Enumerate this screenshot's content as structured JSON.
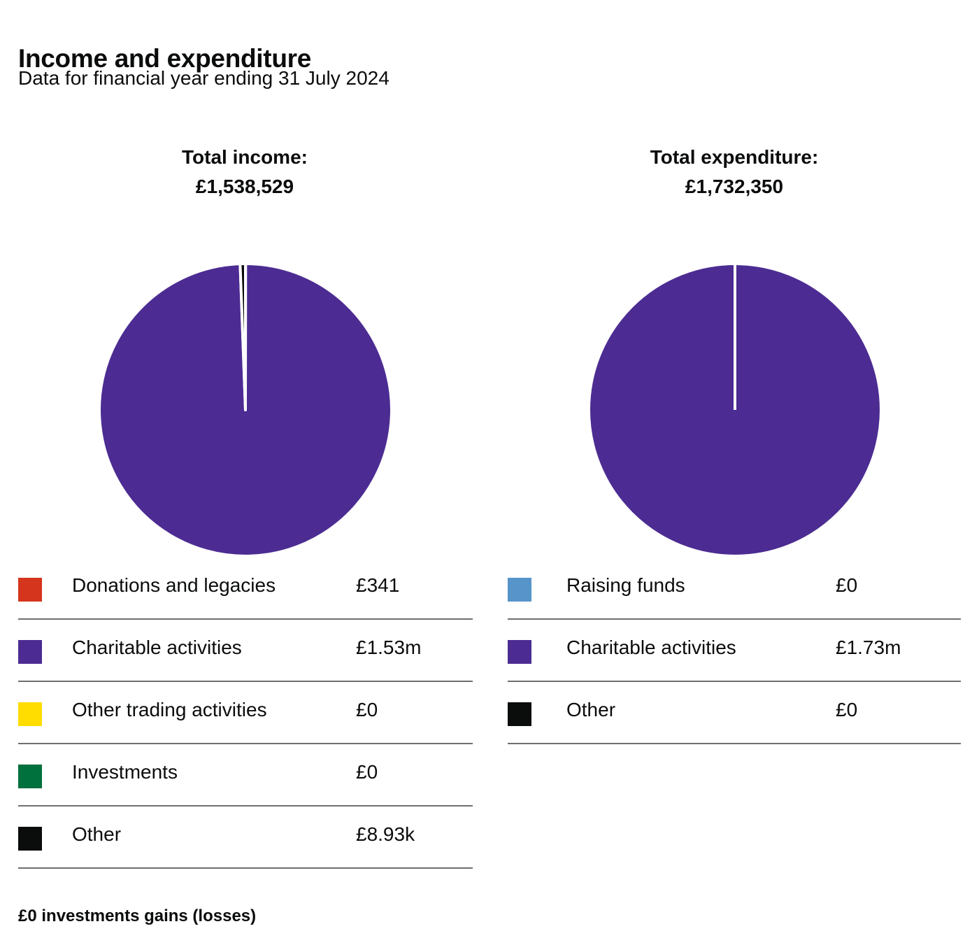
{
  "header": {
    "title": "Income and expenditure",
    "subtitle": "Data for financial year ending 31 July 2024"
  },
  "footnote": "£0 investments gains (losses)",
  "chart_data": [
    {
      "type": "pie",
      "heading_label": "Total income:",
      "heading_value": "£1,538,529",
      "total": 1538529,
      "slices": [
        {
          "label": "Donations and legacies",
          "display": "£341",
          "value": 341,
          "color": "#d4351c"
        },
        {
          "label": "Charitable activities",
          "display": "£1.53m",
          "value": 1529259,
          "color": "#4c2c92"
        },
        {
          "label": "Other trading activities",
          "display": "£0",
          "value": 0,
          "color": "#ffdd00"
        },
        {
          "label": "Investments",
          "display": "£0",
          "value": 0,
          "color": "#00703c"
        },
        {
          "label": "Other",
          "display": "£8.93k",
          "value": 8929,
          "color": "#0b0c0c"
        }
      ]
    },
    {
      "type": "pie",
      "heading_label": "Total expenditure:",
      "heading_value": "£1,732,350",
      "total": 1732350,
      "slices": [
        {
          "label": "Raising funds",
          "display": "£0",
          "value": 0,
          "color": "#5694ca"
        },
        {
          "label": "Charitable activities",
          "display": "£1.73m",
          "value": 1732350,
          "color": "#4c2c92"
        },
        {
          "label": "Other",
          "display": "£0",
          "value": 0,
          "color": "#0b0c0c"
        }
      ]
    }
  ]
}
